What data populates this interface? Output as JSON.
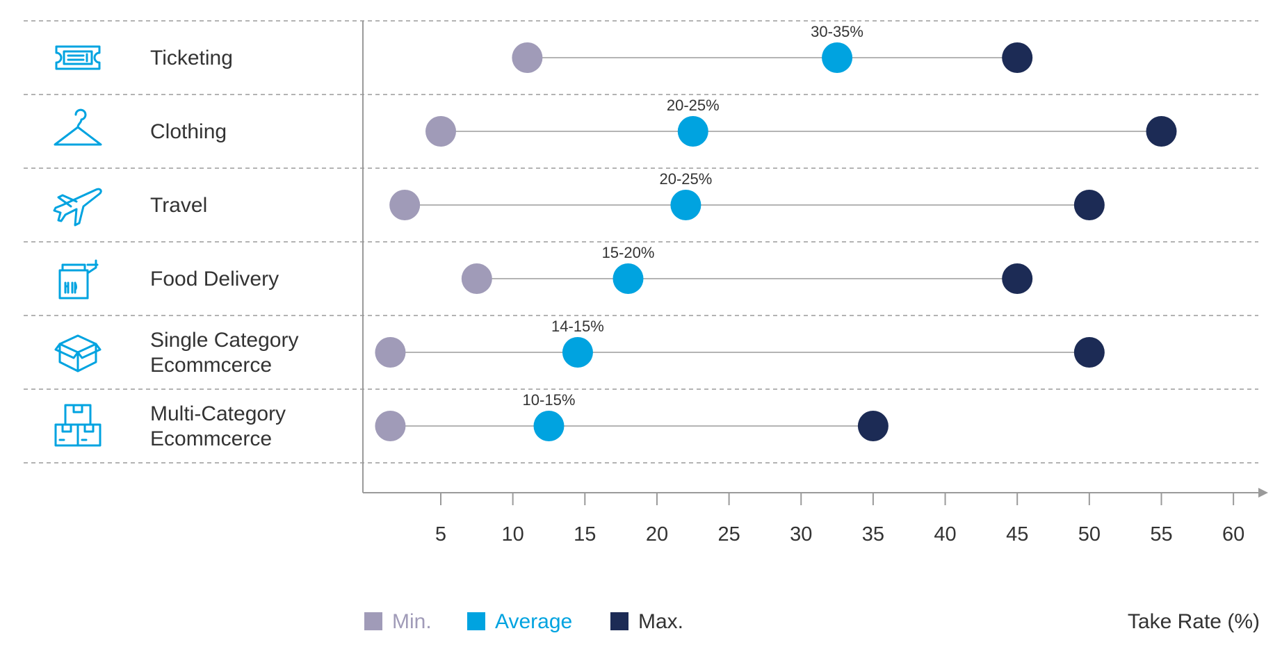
{
  "chart_data": {
    "type": "dumbbell",
    "xlabel": "Take Rate (%)",
    "x_ticks": [
      5,
      10,
      15,
      20,
      25,
      30,
      35,
      40,
      45,
      50,
      55,
      60
    ],
    "xlim": [
      0,
      60
    ],
    "categories": [
      {
        "label_lines": [
          "Ticketing"
        ],
        "icon": "ticket-icon",
        "min": 11,
        "avg": 32.5,
        "max": 45,
        "avg_label": "30-35%"
      },
      {
        "label_lines": [
          "Clothing"
        ],
        "icon": "hanger-icon",
        "min": 5,
        "avg": 22.5,
        "max": 55,
        "avg_label": "20-25%"
      },
      {
        "label_lines": [
          "Travel"
        ],
        "icon": "airplane-icon",
        "min": 2.5,
        "avg": 22,
        "max": 50,
        "avg_label": "20-25%"
      },
      {
        "label_lines": [
          "Food Delivery"
        ],
        "icon": "food-bag-icon",
        "min": 7.5,
        "avg": 18,
        "max": 45,
        "avg_label": "15-20%"
      },
      {
        "label_lines": [
          "Single Category",
          "Ecommcerce"
        ],
        "icon": "box-icon",
        "min": 1.5,
        "avg": 14.5,
        "max": 50,
        "avg_label": "14-15%"
      },
      {
        "label_lines": [
          "Multi-Category",
          "Ecommcerce"
        ],
        "icon": "stacked-boxes-icon",
        "min": 1.5,
        "avg": 12.5,
        "max": 35,
        "avg_label": "10-15%"
      }
    ],
    "legend": [
      {
        "key": "min",
        "label": "Min.",
        "color": "#a09bb8"
      },
      {
        "key": "avg",
        "label": "Average",
        "color": "#00a3e0"
      },
      {
        "key": "max",
        "label": "Max.",
        "color": "#1c2b55"
      }
    ],
    "legend_position": "bottom-left",
    "grid": "dashed-row-separators"
  },
  "colors": {
    "min": "#a09bb8",
    "avg": "#00a3e0",
    "max": "#1c2b55",
    "icon": "#00a3e0",
    "line": "#b4b4b4",
    "grid": "#9a9a9a",
    "axis": "#9a9a9a"
  }
}
